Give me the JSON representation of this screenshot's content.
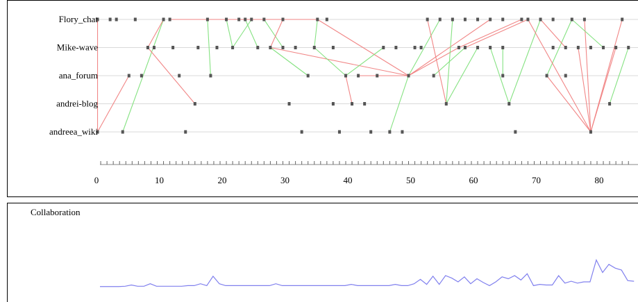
{
  "timeline": {
    "participants": [
      "Flory_chat",
      "Mike-wave",
      "ana_forum",
      "andrei-blog",
      "andreea_wiki"
    ],
    "x_ticks": [
      0,
      10,
      20,
      30,
      40,
      50,
      60,
      70,
      80
    ],
    "colors": {
      "reply_green": "#7ee07a",
      "reply_red": "#f08080",
      "event": "#555555",
      "lane": "#d9d9d9",
      "frame": "#000000"
    }
  },
  "collaboration": {
    "label": "Collaboration",
    "line_color": "#8080ee"
  },
  "chart_data": [
    {
      "type": "scatter",
      "title": "",
      "xlabel": "",
      "ylabel": "",
      "xlim": [
        -1,
        85
      ],
      "x_ticks": [
        0,
        10,
        20,
        30,
        40,
        50,
        60,
        70,
        80
      ],
      "categories": [
        "Flory_chat",
        "Mike-wave",
        "ana_forum",
        "andrei-blog",
        "andreea_wiki"
      ],
      "events": {
        "Flory_chat": [
          0.5,
          2.5,
          3.5,
          6.5,
          11,
          12,
          18,
          21,
          23,
          24,
          25,
          27,
          30,
          35.5,
          37,
          53,
          55,
          57,
          59,
          61,
          63,
          65,
          68,
          69,
          71,
          73,
          76,
          78,
          84
        ],
        "Mike-wave": [
          8.5,
          9.5,
          12.5,
          16.5,
          19.5,
          22,
          26,
          28,
          30,
          32,
          35,
          38,
          46,
          48,
          51,
          52,
          58,
          59,
          61,
          63,
          65,
          73,
          75,
          77,
          79,
          81,
          83,
          85
        ],
        "ana_forum": [
          5.5,
          7.5,
          13.5,
          18.5,
          34,
          40,
          42,
          45,
          50,
          54,
          65,
          72,
          75
        ],
        "andrei-blog": [
          16,
          31,
          38,
          41,
          43,
          56,
          66,
          82
        ],
        "andreea_wiki": [
          0.5,
          4.5,
          14.5,
          33,
          39,
          44,
          47,
          49,
          67,
          79
        ]
      },
      "links": [
        {
          "from": [
            "Flory_chat",
            0.5
          ],
          "to": [
            "andreea_wiki",
            0.5
          ],
          "color": "red"
        },
        {
          "from": [
            "andreea_wiki",
            0.5
          ],
          "to": [
            "ana_forum",
            5.5
          ],
          "color": "red"
        },
        {
          "from": [
            "andreea_wiki",
            4.5
          ],
          "to": [
            "Flory_chat",
            11
          ],
          "color": "green"
        },
        {
          "from": [
            "Mike-wave",
            8.5
          ],
          "to": [
            "Flory_chat",
            11
          ],
          "color": "red"
        },
        {
          "from": [
            "Mike-wave",
            8.5
          ],
          "to": [
            "andrei-blog",
            16
          ],
          "color": "red"
        },
        {
          "from": [
            "Flory_chat",
            12
          ],
          "to": [
            "Flory_chat",
            35.5
          ],
          "color": "red"
        },
        {
          "from": [
            "Flory_chat",
            18
          ],
          "to": [
            "ana_forum",
            18.5
          ],
          "color": "green"
        },
        {
          "from": [
            "Flory_chat",
            21
          ],
          "to": [
            "Mike-wave",
            22
          ],
          "color": "green"
        },
        {
          "from": [
            "Mike-wave",
            22
          ],
          "to": [
            "Flory_chat",
            25
          ],
          "color": "green"
        },
        {
          "from": [
            "Flory_chat",
            24
          ],
          "to": [
            "Mike-wave",
            26
          ],
          "color": "green"
        },
        {
          "from": [
            "Flory_chat",
            27
          ],
          "to": [
            "Mike-wave",
            30
          ],
          "color": "green"
        },
        {
          "from": [
            "Flory_chat",
            30
          ],
          "to": [
            "Mike-wave",
            28
          ],
          "color": "red"
        },
        {
          "from": [
            "Flory_chat",
            35.5
          ],
          "to": [
            "Mike-wave",
            35
          ],
          "color": "green"
        },
        {
          "from": [
            "Mike-wave",
            28
          ],
          "to": [
            "ana_forum",
            34
          ],
          "color": "green"
        },
        {
          "from": [
            "Flory_chat",
            35.5
          ],
          "to": [
            "ana_forum",
            50
          ],
          "color": "red"
        },
        {
          "from": [
            "Mike-wave",
            28
          ],
          "to": [
            "ana_forum",
            50
          ],
          "color": "red"
        },
        {
          "from": [
            "Mike-wave",
            35
          ],
          "to": [
            "ana_forum",
            40
          ],
          "color": "green"
        },
        {
          "from": [
            "ana_forum",
            40
          ],
          "to": [
            "Mike-wave",
            46
          ],
          "color": "green"
        },
        {
          "from": [
            "ana_forum",
            40
          ],
          "to": [
            "andrei-blog",
            41
          ],
          "color": "red"
        },
        {
          "from": [
            "ana_forum",
            42
          ],
          "to": [
            "ana_forum",
            50
          ],
          "color": "red"
        },
        {
          "from": [
            "andreea_wiki",
            47
          ],
          "to": [
            "ana_forum",
            50
          ],
          "color": "green"
        },
        {
          "from": [
            "ana_forum",
            50
          ],
          "to": [
            "Flory_chat",
            55
          ],
          "color": "green"
        },
        {
          "from": [
            "ana_forum",
            50
          ],
          "to": [
            "Mike-wave",
            58
          ],
          "color": "red"
        },
        {
          "from": [
            "ana_forum",
            50
          ],
          "to": [
            "Flory_chat",
            63
          ],
          "color": "red"
        },
        {
          "from": [
            "ana_forum",
            54
          ],
          "to": [
            "Mike-wave",
            59
          ],
          "color": "green"
        },
        {
          "from": [
            "Flory_chat",
            53
          ],
          "to": [
            "andrei-blog",
            56
          ],
          "color": "red"
        },
        {
          "from": [
            "Flory_chat",
            57
          ],
          "to": [
            "andrei-blog",
            56
          ],
          "color": "green"
        },
        {
          "from": [
            "andrei-blog",
            56
          ],
          "to": [
            "Mike-wave",
            61
          ],
          "color": "green"
        },
        {
          "from": [
            "Mike-wave",
            58
          ],
          "to": [
            "Flory_chat",
            68
          ],
          "color": "red"
        },
        {
          "from": [
            "Mike-wave",
            59
          ],
          "to": [
            "Flory_chat",
            69
          ],
          "color": "red"
        },
        {
          "from": [
            "Mike-wave",
            63
          ],
          "to": [
            "andrei-blog",
            66
          ],
          "color": "green"
        },
        {
          "from": [
            "Mike-wave",
            65
          ],
          "to": [
            "ana_forum",
            65
          ],
          "color": "green"
        },
        {
          "from": [
            "andrei-blog",
            66
          ],
          "to": [
            "Flory_chat",
            71
          ],
          "color": "green"
        },
        {
          "from": [
            "ana_forum",
            72
          ],
          "to": [
            "Flory_chat",
            76
          ],
          "color": "green"
        },
        {
          "from": [
            "Flory_chat",
            69
          ],
          "to": [
            "andreea_wiki",
            79
          ],
          "color": "red"
        },
        {
          "from": [
            "Flory_chat",
            78
          ],
          "to": [
            "andreea_wiki",
            79
          ],
          "color": "red"
        },
        {
          "from": [
            "Mike-wave",
            77
          ],
          "to": [
            "andreea_wiki",
            79
          ],
          "color": "red"
        },
        {
          "from": [
            "ana_forum",
            72
          ],
          "to": [
            "andreea_wiki",
            79
          ],
          "color": "red"
        },
        {
          "from": [
            "andreea_wiki",
            79
          ],
          "to": [
            "Mike-wave",
            83
          ],
          "color": "red"
        },
        {
          "from": [
            "andreea_wiki",
            79
          ],
          "to": [
            "Flory_chat",
            84
          ],
          "color": "red"
        },
        {
          "from": [
            "andrei-blog",
            82
          ],
          "to": [
            "Mike-wave",
            85
          ],
          "color": "green"
        },
        {
          "from": [
            "Flory_chat",
            71
          ],
          "to": [
            "Mike-wave",
            75
          ],
          "color": "red"
        },
        {
          "from": [
            "Flory_chat",
            76
          ],
          "to": [
            "Mike-wave",
            81
          ],
          "color": "green"
        }
      ]
    },
    {
      "type": "line",
      "title": "Collaboration",
      "xlabel": "",
      "ylabel": "",
      "xlim": [
        -1,
        85
      ],
      "x": [
        0,
        1,
        2,
        3,
        4,
        5,
        6,
        7,
        8,
        9,
        10,
        11,
        12,
        13,
        14,
        15,
        16,
        17,
        18,
        19,
        20,
        21,
        22,
        23,
        24,
        25,
        26,
        27,
        28,
        29,
        30,
        31,
        32,
        33,
        34,
        35,
        36,
        37,
        38,
        39,
        40,
        41,
        42,
        43,
        44,
        45,
        46,
        47,
        48,
        49,
        50,
        51,
        52,
        53,
        54,
        55,
        56,
        57,
        58,
        59,
        60,
        61,
        62,
        63,
        64,
        65,
        66,
        67,
        68,
        69,
        70,
        71,
        72,
        73,
        74,
        75,
        76,
        77,
        78,
        79,
        80,
        81,
        82,
        83,
        84,
        85
      ],
      "values": [
        0.05,
        0.05,
        0.05,
        0.05,
        0.06,
        0.1,
        0.06,
        0.06,
        0.14,
        0.06,
        0.06,
        0.06,
        0.06,
        0.06,
        0.08,
        0.08,
        0.14,
        0.08,
        0.38,
        0.14,
        0.08,
        0.08,
        0.08,
        0.08,
        0.08,
        0.08,
        0.08,
        0.08,
        0.14,
        0.08,
        0.08,
        0.08,
        0.08,
        0.08,
        0.08,
        0.08,
        0.08,
        0.08,
        0.08,
        0.08,
        0.12,
        0.08,
        0.08,
        0.08,
        0.08,
        0.08,
        0.08,
        0.12,
        0.08,
        0.08,
        0.14,
        0.28,
        0.12,
        0.38,
        0.12,
        0.4,
        0.32,
        0.2,
        0.36,
        0.14,
        0.3,
        0.18,
        0.08,
        0.2,
        0.36,
        0.3,
        0.4,
        0.26,
        0.46,
        0.08,
        0.12,
        0.1,
        0.1,
        0.4,
        0.16,
        0.22,
        0.16,
        0.2,
        0.2,
        0.9,
        0.5,
        0.76,
        0.64,
        0.58,
        0.24,
        0.22
      ],
      "ylim": [
        0,
        1
      ]
    }
  ]
}
